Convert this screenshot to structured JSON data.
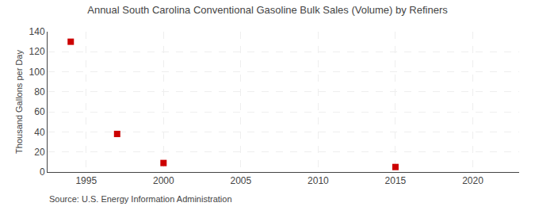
{
  "chart_data": {
    "type": "scatter",
    "title": "Annual South Carolina Conventional Gasoline Bulk Sales (Volume) by Refiners",
    "ylabel": "Thousand Gallons per Day",
    "annotations": [
      "Source: U.S. Energy Information Administration"
    ],
    "x": [
      1994,
      1997,
      2000,
      2015
    ],
    "values": [
      130,
      38,
      9,
      5
    ],
    "color": "#cc0000",
    "marker": "square",
    "xlim": [
      1992.5,
      2023
    ],
    "ylim": [
      0,
      140
    ],
    "xticks": [
      1995,
      2000,
      2005,
      2010,
      2015,
      2020
    ],
    "yticks": [
      0,
      20,
      40,
      60,
      80,
      100,
      120,
      140
    ],
    "grid": true
  }
}
